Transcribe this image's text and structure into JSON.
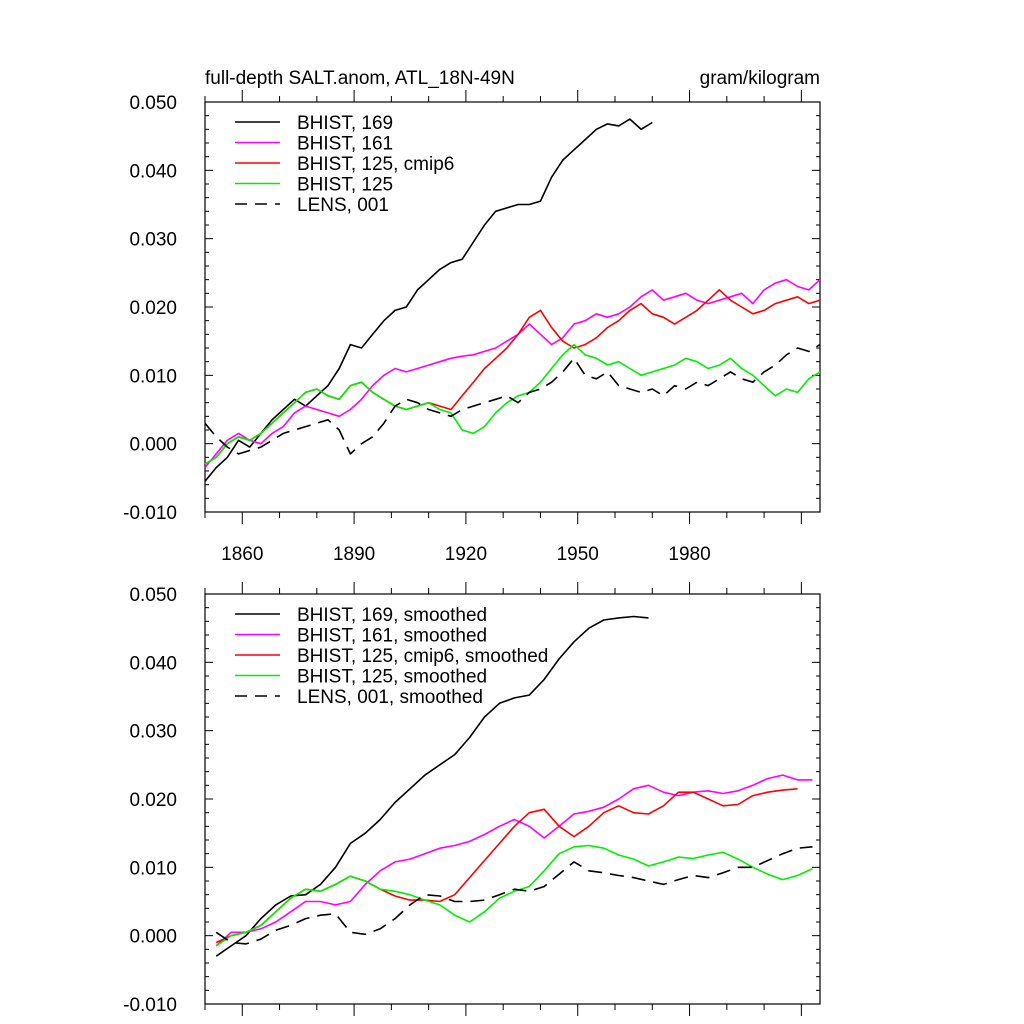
{
  "figure": {
    "title_left": "full-depth SALT.anom, ATL_18N-49N",
    "title_right": "gram/kilogram"
  },
  "chart_data": [
    {
      "type": "line",
      "panel": "top",
      "xlim": [
        1850,
        2015
      ],
      "ylim": [
        -0.01,
        0.05
      ],
      "yticks": [
        "-0.010",
        "0.000",
        "0.010",
        "0.020",
        "0.030",
        "0.040",
        "0.050"
      ],
      "xticks": [
        "1860",
        "1890",
        "1920",
        "1950",
        "1980"
      ],
      "legend_position": "top-left",
      "series": [
        {
          "name": "BHIST, 169",
          "color": "#000000",
          "dash": false,
          "x": [
            1850,
            1853,
            1856,
            1859,
            1862,
            1865,
            1868,
            1871,
            1874,
            1877,
            1880,
            1883,
            1886,
            1889,
            1892,
            1895,
            1898,
            1901,
            1904,
            1907,
            1910,
            1913,
            1916,
            1919,
            1922,
            1925,
            1928,
            1931,
            1934,
            1937,
            1940,
            1943,
            1946,
            1949,
            1952,
            1955,
            1958,
            1961,
            1964,
            1967,
            1970
          ],
          "values": [
            -0.0055,
            -0.0035,
            -0.002,
            0.0005,
            -0.0005,
            0.0015,
            0.0035,
            0.005,
            0.0065,
            0.0055,
            0.007,
            0.0085,
            0.011,
            0.0145,
            0.014,
            0.016,
            0.018,
            0.0195,
            0.02,
            0.0225,
            0.024,
            0.0255,
            0.0265,
            0.027,
            0.0295,
            0.032,
            0.034,
            0.0345,
            0.035,
            0.035,
            0.0355,
            0.039,
            0.0415,
            0.043,
            0.0445,
            0.046,
            0.0468,
            0.0465,
            0.0475,
            0.046,
            0.047
          ]
        },
        {
          "name": "BHIST, 161",
          "color": "#ff00ff",
          "dash": false,
          "x": [
            1850,
            1853,
            1856,
            1859,
            1862,
            1865,
            1868,
            1871,
            1874,
            1877,
            1880,
            1883,
            1886,
            1889,
            1892,
            1895,
            1898,
            1901,
            1904,
            1907,
            1910,
            1913,
            1916,
            1919,
            1922,
            1925,
            1928,
            1931,
            1934,
            1937,
            1940,
            1943,
            1946,
            1949,
            1952,
            1955,
            1958,
            1961,
            1964,
            1967,
            1970,
            1973,
            1976,
            1979,
            1982,
            1985,
            1988,
            1991,
            1994,
            1997,
            2000,
            2003,
            2006,
            2009,
            2012,
            2015
          ],
          "values": [
            -0.0035,
            -0.0015,
            0.0005,
            0.0015,
            0.0005,
            0.0,
            0.0015,
            0.0025,
            0.0045,
            0.0055,
            0.005,
            0.0045,
            0.004,
            0.005,
            0.0065,
            0.0085,
            0.01,
            0.011,
            0.0105,
            0.011,
            0.0115,
            0.012,
            0.0125,
            0.0128,
            0.013,
            0.0135,
            0.014,
            0.015,
            0.016,
            0.0175,
            0.016,
            0.0145,
            0.0155,
            0.0175,
            0.018,
            0.019,
            0.0185,
            0.019,
            0.02,
            0.0215,
            0.0225,
            0.021,
            0.0215,
            0.022,
            0.021,
            0.0205,
            0.021,
            0.0215,
            0.022,
            0.0205,
            0.0225,
            0.0235,
            0.024,
            0.023,
            0.0225,
            0.024
          ]
        },
        {
          "name": "BHIST, 125, cmip6",
          "color": "#ff0000",
          "dash": false,
          "x": [
            1850,
            1853,
            1856,
            1859,
            1862,
            1865,
            1868,
            1871,
            1874,
            1877,
            1880,
            1883,
            1886,
            1889,
            1892,
            1895,
            1898,
            1901,
            1904,
            1907,
            1910,
            1913,
            1916,
            1919,
            1922,
            1925,
            1928,
            1931,
            1934,
            1937,
            1940,
            1943,
            1946,
            1949,
            1952,
            1955,
            1958,
            1961,
            1964,
            1967,
            1970,
            1973,
            1976,
            1979,
            1982,
            1985,
            1988,
            1991,
            1994,
            1997,
            2000,
            2003,
            2006,
            2009,
            2012,
            2015
          ],
          "values": [
            -0.003,
            -0.002,
            0.0,
            0.001,
            0.0005,
            0.0015,
            0.003,
            0.0045,
            0.006,
            0.0075,
            0.008,
            0.007,
            0.0065,
            0.0085,
            0.009,
            0.0075,
            0.0065,
            0.0055,
            0.005,
            0.0055,
            0.006,
            0.0055,
            0.005,
            0.007,
            0.009,
            0.011,
            0.0125,
            0.014,
            0.016,
            0.0185,
            0.0195,
            0.017,
            0.015,
            0.014,
            0.0145,
            0.0155,
            0.017,
            0.018,
            0.0195,
            0.0205,
            0.019,
            0.0185,
            0.0175,
            0.0185,
            0.0195,
            0.021,
            0.0225,
            0.021,
            0.02,
            0.019,
            0.0195,
            0.0205,
            0.021,
            0.0215,
            0.0205,
            0.021
          ]
        },
        {
          "name": "BHIST, 125",
          "color": "#00ee00",
          "dash": false,
          "x": [
            1850,
            1853,
            1856,
            1859,
            1862,
            1865,
            1868,
            1871,
            1874,
            1877,
            1880,
            1883,
            1886,
            1889,
            1892,
            1895,
            1898,
            1901,
            1904,
            1907,
            1910,
            1913,
            1916,
            1919,
            1922,
            1925,
            1928,
            1931,
            1934,
            1937,
            1940,
            1943,
            1946,
            1949,
            1952,
            1955,
            1958,
            1961,
            1964,
            1967,
            1970,
            1973,
            1976,
            1979,
            1982,
            1985,
            1988,
            1991,
            1994,
            1997,
            2000,
            2003,
            2006,
            2009,
            2012,
            2015
          ],
          "values": [
            -0.003,
            -0.002,
            0.0,
            0.001,
            0.0005,
            0.0015,
            0.003,
            0.0045,
            0.006,
            0.0075,
            0.008,
            0.007,
            0.0065,
            0.0085,
            0.009,
            0.0075,
            0.0065,
            0.0055,
            0.005,
            0.0055,
            0.006,
            0.005,
            0.0045,
            0.002,
            0.0015,
            0.0025,
            0.0045,
            0.006,
            0.007,
            0.0075,
            0.009,
            0.011,
            0.013,
            0.0145,
            0.013,
            0.0125,
            0.0115,
            0.012,
            0.011,
            0.01,
            0.0105,
            0.011,
            0.0115,
            0.0125,
            0.012,
            0.011,
            0.0115,
            0.0125,
            0.011,
            0.01,
            0.0085,
            0.007,
            0.008,
            0.0075,
            0.0095,
            0.0105
          ]
        },
        {
          "name": "LENS, 001",
          "color": "#000000",
          "dash": true,
          "x": [
            1850,
            1853,
            1856,
            1859,
            1862,
            1865,
            1868,
            1871,
            1874,
            1877,
            1880,
            1883,
            1886,
            1889,
            1892,
            1895,
            1898,
            1901,
            1904,
            1907,
            1910,
            1913,
            1916,
            1919,
            1922,
            1925,
            1928,
            1931,
            1934,
            1937,
            1940,
            1943,
            1946,
            1949,
            1952,
            1955,
            1958,
            1961,
            1964,
            1967,
            1970,
            1973,
            1976,
            1979,
            1982,
            1985,
            1988,
            1991,
            1994,
            1997,
            2000,
            2003,
            2006,
            2009,
            2012,
            2015
          ],
          "values": [
            0.003,
            0.001,
            -0.0005,
            -0.0015,
            -0.001,
            -0.0005,
            0.0005,
            0.0015,
            0.002,
            0.0025,
            0.003,
            0.0035,
            0.002,
            -0.0015,
            0.0,
            0.001,
            0.003,
            0.0055,
            0.0065,
            0.006,
            0.005,
            0.0045,
            0.004,
            0.005,
            0.0055,
            0.006,
            0.0065,
            0.007,
            0.006,
            0.0075,
            0.008,
            0.009,
            0.0105,
            0.0125,
            0.01,
            0.0095,
            0.0105,
            0.0085,
            0.008,
            0.0075,
            0.008,
            0.007,
            0.0085,
            0.008,
            0.009,
            0.0085,
            0.0095,
            0.0105,
            0.0095,
            0.009,
            0.0105,
            0.0115,
            0.013,
            0.014,
            0.0135,
            0.0145
          ]
        }
      ]
    },
    {
      "type": "line",
      "panel": "bottom",
      "xlim": [
        1850,
        2015
      ],
      "ylim": [
        -0.01,
        0.05
      ],
      "yticks": [
        "-0.010",
        "0.000",
        "0.010",
        "0.020",
        "0.030",
        "0.040",
        "0.050"
      ],
      "legend_position": "top-left",
      "series": [
        {
          "name": "BHIST, 169, smoothed",
          "color": "#000000",
          "dash": false,
          "x": [
            1853,
            1857,
            1861,
            1865,
            1869,
            1873,
            1877,
            1881,
            1885,
            1889,
            1893,
            1897,
            1901,
            1905,
            1909,
            1913,
            1917,
            1921,
            1925,
            1929,
            1933,
            1937,
            1941,
            1945,
            1949,
            1953,
            1957,
            1961,
            1965,
            1969
          ],
          "values": [
            -0.003,
            -0.0015,
            0.0,
            0.0025,
            0.0045,
            0.0058,
            0.006,
            0.0075,
            0.01,
            0.0135,
            0.015,
            0.017,
            0.0195,
            0.0215,
            0.0235,
            0.025,
            0.0265,
            0.029,
            0.032,
            0.034,
            0.0348,
            0.0352,
            0.0375,
            0.0405,
            0.043,
            0.045,
            0.0462,
            0.0465,
            0.0467,
            0.0465
          ]
        },
        {
          "name": "BHIST, 161, smoothed",
          "color": "#ff00ff",
          "dash": false,
          "x": [
            1853,
            1857,
            1861,
            1865,
            1869,
            1873,
            1877,
            1881,
            1885,
            1889,
            1893,
            1897,
            1901,
            1905,
            1909,
            1913,
            1917,
            1921,
            1925,
            1929,
            1933,
            1937,
            1941,
            1945,
            1949,
            1953,
            1957,
            1961,
            1965,
            1969,
            1973,
            1977,
            1981,
            1985,
            1989,
            1993,
            1997,
            2001,
            2005,
            2009,
            2013
          ],
          "values": [
            -0.0015,
            0.0005,
            0.0005,
            0.001,
            0.002,
            0.0035,
            0.005,
            0.005,
            0.0045,
            0.005,
            0.0075,
            0.0095,
            0.0108,
            0.0112,
            0.012,
            0.0128,
            0.0132,
            0.0138,
            0.0148,
            0.016,
            0.017,
            0.016,
            0.0143,
            0.016,
            0.0178,
            0.0182,
            0.0188,
            0.02,
            0.0215,
            0.022,
            0.021,
            0.0205,
            0.021,
            0.0212,
            0.0208,
            0.0212,
            0.022,
            0.023,
            0.0235,
            0.0228,
            0.0228
          ]
        },
        {
          "name": "BHIST, 125, cmip6, smoothed",
          "color": "#ff0000",
          "dash": false,
          "x": [
            1853,
            1857,
            1861,
            1865,
            1869,
            1873,
            1877,
            1881,
            1885,
            1889,
            1893,
            1897,
            1901,
            1905,
            1909,
            1913,
            1917,
            1921,
            1925,
            1929,
            1933,
            1937,
            1941,
            1945,
            1949,
            1953,
            1957,
            1961,
            1965,
            1969,
            1973,
            1977,
            1981,
            1985,
            1989,
            1993,
            1997,
            2001,
            2005,
            2009
          ],
          "values": [
            -0.001,
            0.0,
            0.0005,
            0.0015,
            0.0035,
            0.0055,
            0.0068,
            0.0065,
            0.0075,
            0.0087,
            0.008,
            0.0068,
            0.0058,
            0.0052,
            0.0052,
            0.005,
            0.006,
            0.0085,
            0.011,
            0.0135,
            0.016,
            0.018,
            0.0185,
            0.016,
            0.0145,
            0.016,
            0.018,
            0.019,
            0.018,
            0.0178,
            0.019,
            0.021,
            0.021,
            0.02,
            0.019,
            0.0192,
            0.0205,
            0.021,
            0.0213,
            0.0215
          ]
        },
        {
          "name": "BHIST, 125, smoothed",
          "color": "#00ee00",
          "dash": false,
          "x": [
            1853,
            1857,
            1861,
            1865,
            1869,
            1873,
            1877,
            1881,
            1885,
            1889,
            1893,
            1897,
            1901,
            1905,
            1909,
            1913,
            1917,
            1921,
            1925,
            1929,
            1933,
            1937,
            1941,
            1945,
            1949,
            1953,
            1957,
            1961,
            1965,
            1969,
            1973,
            1977,
            1981,
            1985,
            1989,
            1993,
            1997,
            2001,
            2005,
            2009,
            2013
          ],
          "values": [
            -0.0015,
            0.0,
            0.0005,
            0.0015,
            0.0035,
            0.0055,
            0.0068,
            0.0065,
            0.0075,
            0.0087,
            0.008,
            0.0068,
            0.0065,
            0.006,
            0.0052,
            0.0045,
            0.003,
            0.002,
            0.0035,
            0.0055,
            0.0065,
            0.0072,
            0.0095,
            0.012,
            0.013,
            0.0132,
            0.0128,
            0.0118,
            0.0112,
            0.0102,
            0.0108,
            0.0115,
            0.0113,
            0.0118,
            0.0122,
            0.0112,
            0.01,
            0.009,
            0.0082,
            0.0088,
            0.0098
          ]
        },
        {
          "name": "LENS, 001, smoothed",
          "color": "#000000",
          "dash": true,
          "x": [
            1853,
            1857,
            1861,
            1865,
            1869,
            1873,
            1877,
            1881,
            1885,
            1889,
            1893,
            1897,
            1901,
            1905,
            1909,
            1913,
            1917,
            1921,
            1925,
            1929,
            1933,
            1937,
            1941,
            1945,
            1949,
            1953,
            1957,
            1961,
            1965,
            1969,
            1973,
            1977,
            1981,
            1985,
            1989,
            1993,
            1997,
            2001,
            2005,
            2009,
            2013
          ],
          "values": [
            0.0005,
            -0.001,
            -0.0012,
            -0.0005,
            0.0008,
            0.0015,
            0.0025,
            0.003,
            0.0032,
            0.0005,
            0.0002,
            0.001,
            0.0025,
            0.0045,
            0.006,
            0.0058,
            0.005,
            0.005,
            0.0052,
            0.006,
            0.0068,
            0.0065,
            0.0072,
            0.009,
            0.0108,
            0.0095,
            0.0092,
            0.0088,
            0.0085,
            0.008,
            0.0075,
            0.0082,
            0.0088,
            0.0085,
            0.0092,
            0.01,
            0.01,
            0.011,
            0.012,
            0.0128,
            0.013
          ]
        }
      ]
    }
  ]
}
